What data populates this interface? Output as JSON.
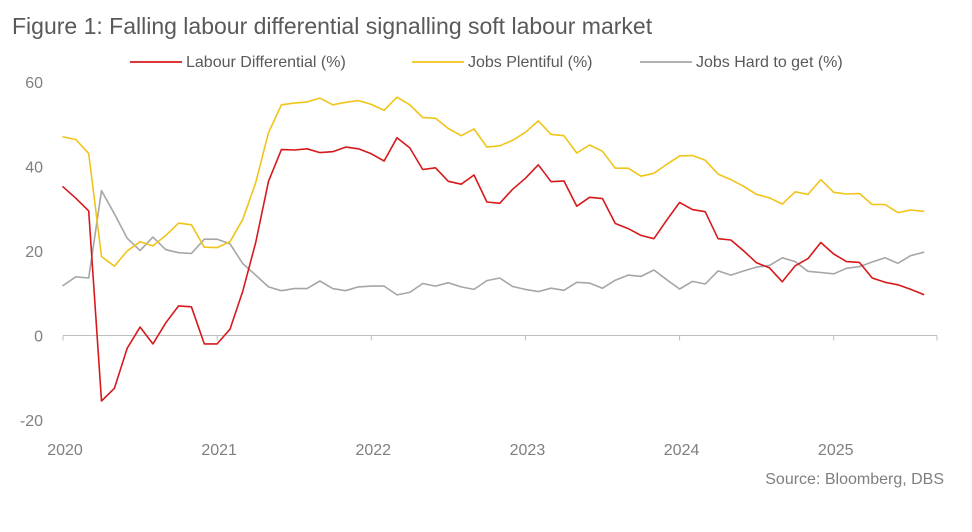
{
  "chart_data": {
    "type": "line",
    "title": "Figure 1: Falling labour differential signalling soft labour market",
    "source": "Source: Bloomberg, DBS",
    "ylim": [
      -20,
      60
    ],
    "yticks": [
      60,
      40,
      20,
      0,
      -20
    ],
    "ytick_labels": [
      "60",
      "40",
      "20",
      "0",
      "-20"
    ],
    "xlim": [
      2020.0,
      2025.67
    ],
    "xticks": [
      2020,
      2021,
      2022,
      2023,
      2024,
      2025
    ],
    "xtick_labels": [
      "2020",
      "2021",
      "2022",
      "2023",
      "2024",
      "2025"
    ],
    "xstart": 2020.0,
    "xstep": 0.08333,
    "legend_position": "top",
    "series": [
      {
        "name": "Labour Differential (%)",
        "color": "#d7191c",
        "values": [
          35.2,
          32.5,
          29.5,
          -15.5,
          -12.5,
          -3.0,
          2.0,
          -2.0,
          3.0,
          7.0,
          6.8,
          -2.0,
          -2.0,
          1.5,
          10.5,
          22.0,
          36.5,
          44.0,
          43.9,
          44.2,
          43.3,
          43.5,
          44.6,
          44.2,
          43.0,
          41.3,
          46.8,
          44.4,
          39.3,
          39.7,
          36.5,
          35.8,
          38.0,
          31.6,
          31.3,
          34.6,
          37.2,
          40.4,
          36.4,
          36.6,
          30.6,
          32.7,
          32.4,
          26.5,
          25.3,
          23.7,
          22.9,
          27.3,
          31.5,
          29.8,
          29.3,
          22.9,
          22.6,
          20.0,
          17.2,
          16.0,
          12.7,
          16.5,
          18.2,
          22.0,
          19.3,
          17.5,
          17.3,
          13.6,
          12.6,
          12.0,
          10.9,
          9.7
        ]
      },
      {
        "name": "Jobs Plentiful (%)",
        "color": "#f0c419",
        "values": [
          47.0,
          46.4,
          43.1,
          18.7,
          16.4,
          20.0,
          22.2,
          21.2,
          23.7,
          26.6,
          26.2,
          20.9,
          20.8,
          22.2,
          27.5,
          36.2,
          48.0,
          54.6,
          55.0,
          55.3,
          56.2,
          54.6,
          55.2,
          55.6,
          54.7,
          53.3,
          56.4,
          54.6,
          51.6,
          51.4,
          49.0,
          47.3,
          48.9,
          44.6,
          44.9,
          46.2,
          48.1,
          50.8,
          47.6,
          47.3,
          43.2,
          45.1,
          43.6,
          39.6,
          39.6,
          37.7,
          38.4,
          40.5,
          42.5,
          42.6,
          41.5,
          38.2,
          36.9,
          35.3,
          33.4,
          32.6,
          31.1,
          34.0,
          33.4,
          36.9,
          33.9,
          33.5,
          33.6,
          31.0,
          31.0,
          29.1,
          29.7,
          29.4
        ]
      },
      {
        "name": "Jobs Hard to get (%)",
        "color": "#a6a6a6",
        "values": [
          11.8,
          13.9,
          13.6,
          34.3,
          28.8,
          23.0,
          20.1,
          23.3,
          20.3,
          19.6,
          19.4,
          22.8,
          22.8,
          21.7,
          17.0,
          14.3,
          11.5,
          10.6,
          11.1,
          11.1,
          12.9,
          11.1,
          10.6,
          11.5,
          11.7,
          11.7,
          9.6,
          10.2,
          12.3,
          11.7,
          12.5,
          11.5,
          10.9,
          13.0,
          13.6,
          11.6,
          10.9,
          10.4,
          11.2,
          10.7,
          12.6,
          12.4,
          11.2,
          13.1,
          14.3,
          14.0,
          15.5,
          13.2,
          11.0,
          12.8,
          12.2,
          15.3,
          14.3,
          15.3,
          16.2,
          16.6,
          18.4,
          17.5,
          15.2,
          14.9,
          14.6,
          15.9,
          16.3,
          17.4,
          18.4,
          17.1,
          18.9,
          19.7
        ]
      }
    ]
  }
}
